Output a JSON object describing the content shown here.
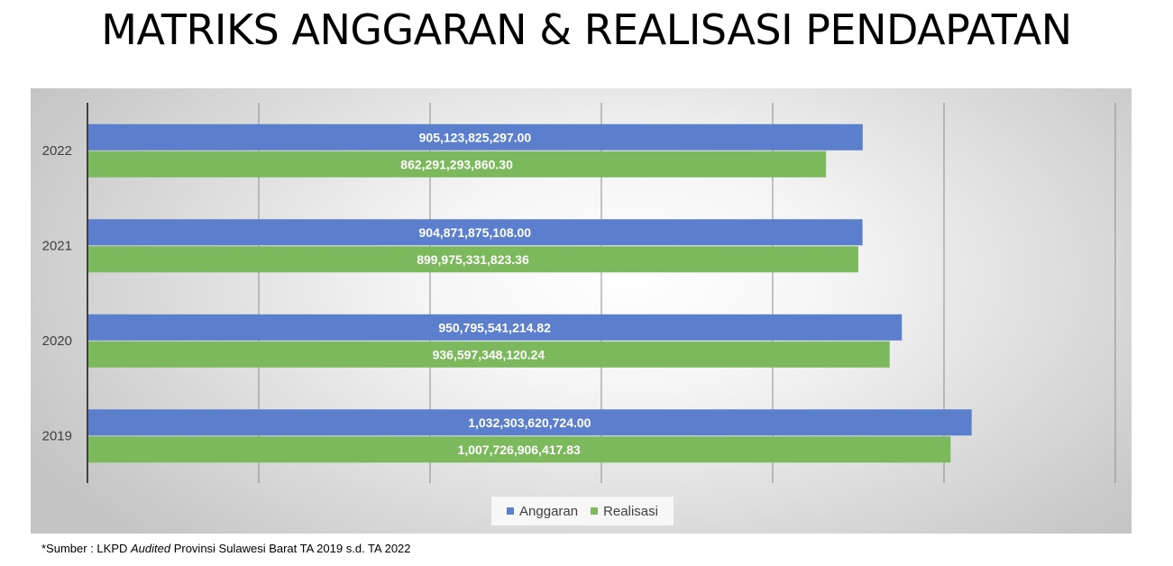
{
  "title": "MATRIKS ANGGARAN & REALISASI PENDAPATAN",
  "source": {
    "prefix": "*Sumber : LKPD ",
    "italic": "Audited",
    "suffix": " Provinsi Sulawesi Barat TA 2019 s.d. TA 2022"
  },
  "colors": {
    "anggaran": "#5b7fcc",
    "realisasi": "#7cb85c",
    "gridline": "#8c8c8c",
    "axis": "#404040"
  },
  "chart_data": {
    "type": "bar",
    "orientation": "horizontal",
    "categories": [
      "2022",
      "2021",
      "2020",
      "2019"
    ],
    "series": [
      {
        "name": "Anggaran",
        "values": [
          905123825297.0,
          904871875108.0,
          950795541214.82,
          1032303620724.0
        ],
        "labels": [
          "905,123,825,297.00",
          "904,871,875,108.00",
          "950,795,541,214.82",
          "1,032,303,620,724.00"
        ]
      },
      {
        "name": "Realisasi",
        "values": [
          862291293860.3,
          899975331823.36,
          936597348120.24,
          1007726906417.83
        ],
        "labels": [
          "862,291,293,860.30",
          "899,975,331,823.36",
          "936,597,348,120.24",
          "1,007,726,906,417.83"
        ]
      }
    ],
    "legend": "bottom",
    "grid": true
  }
}
